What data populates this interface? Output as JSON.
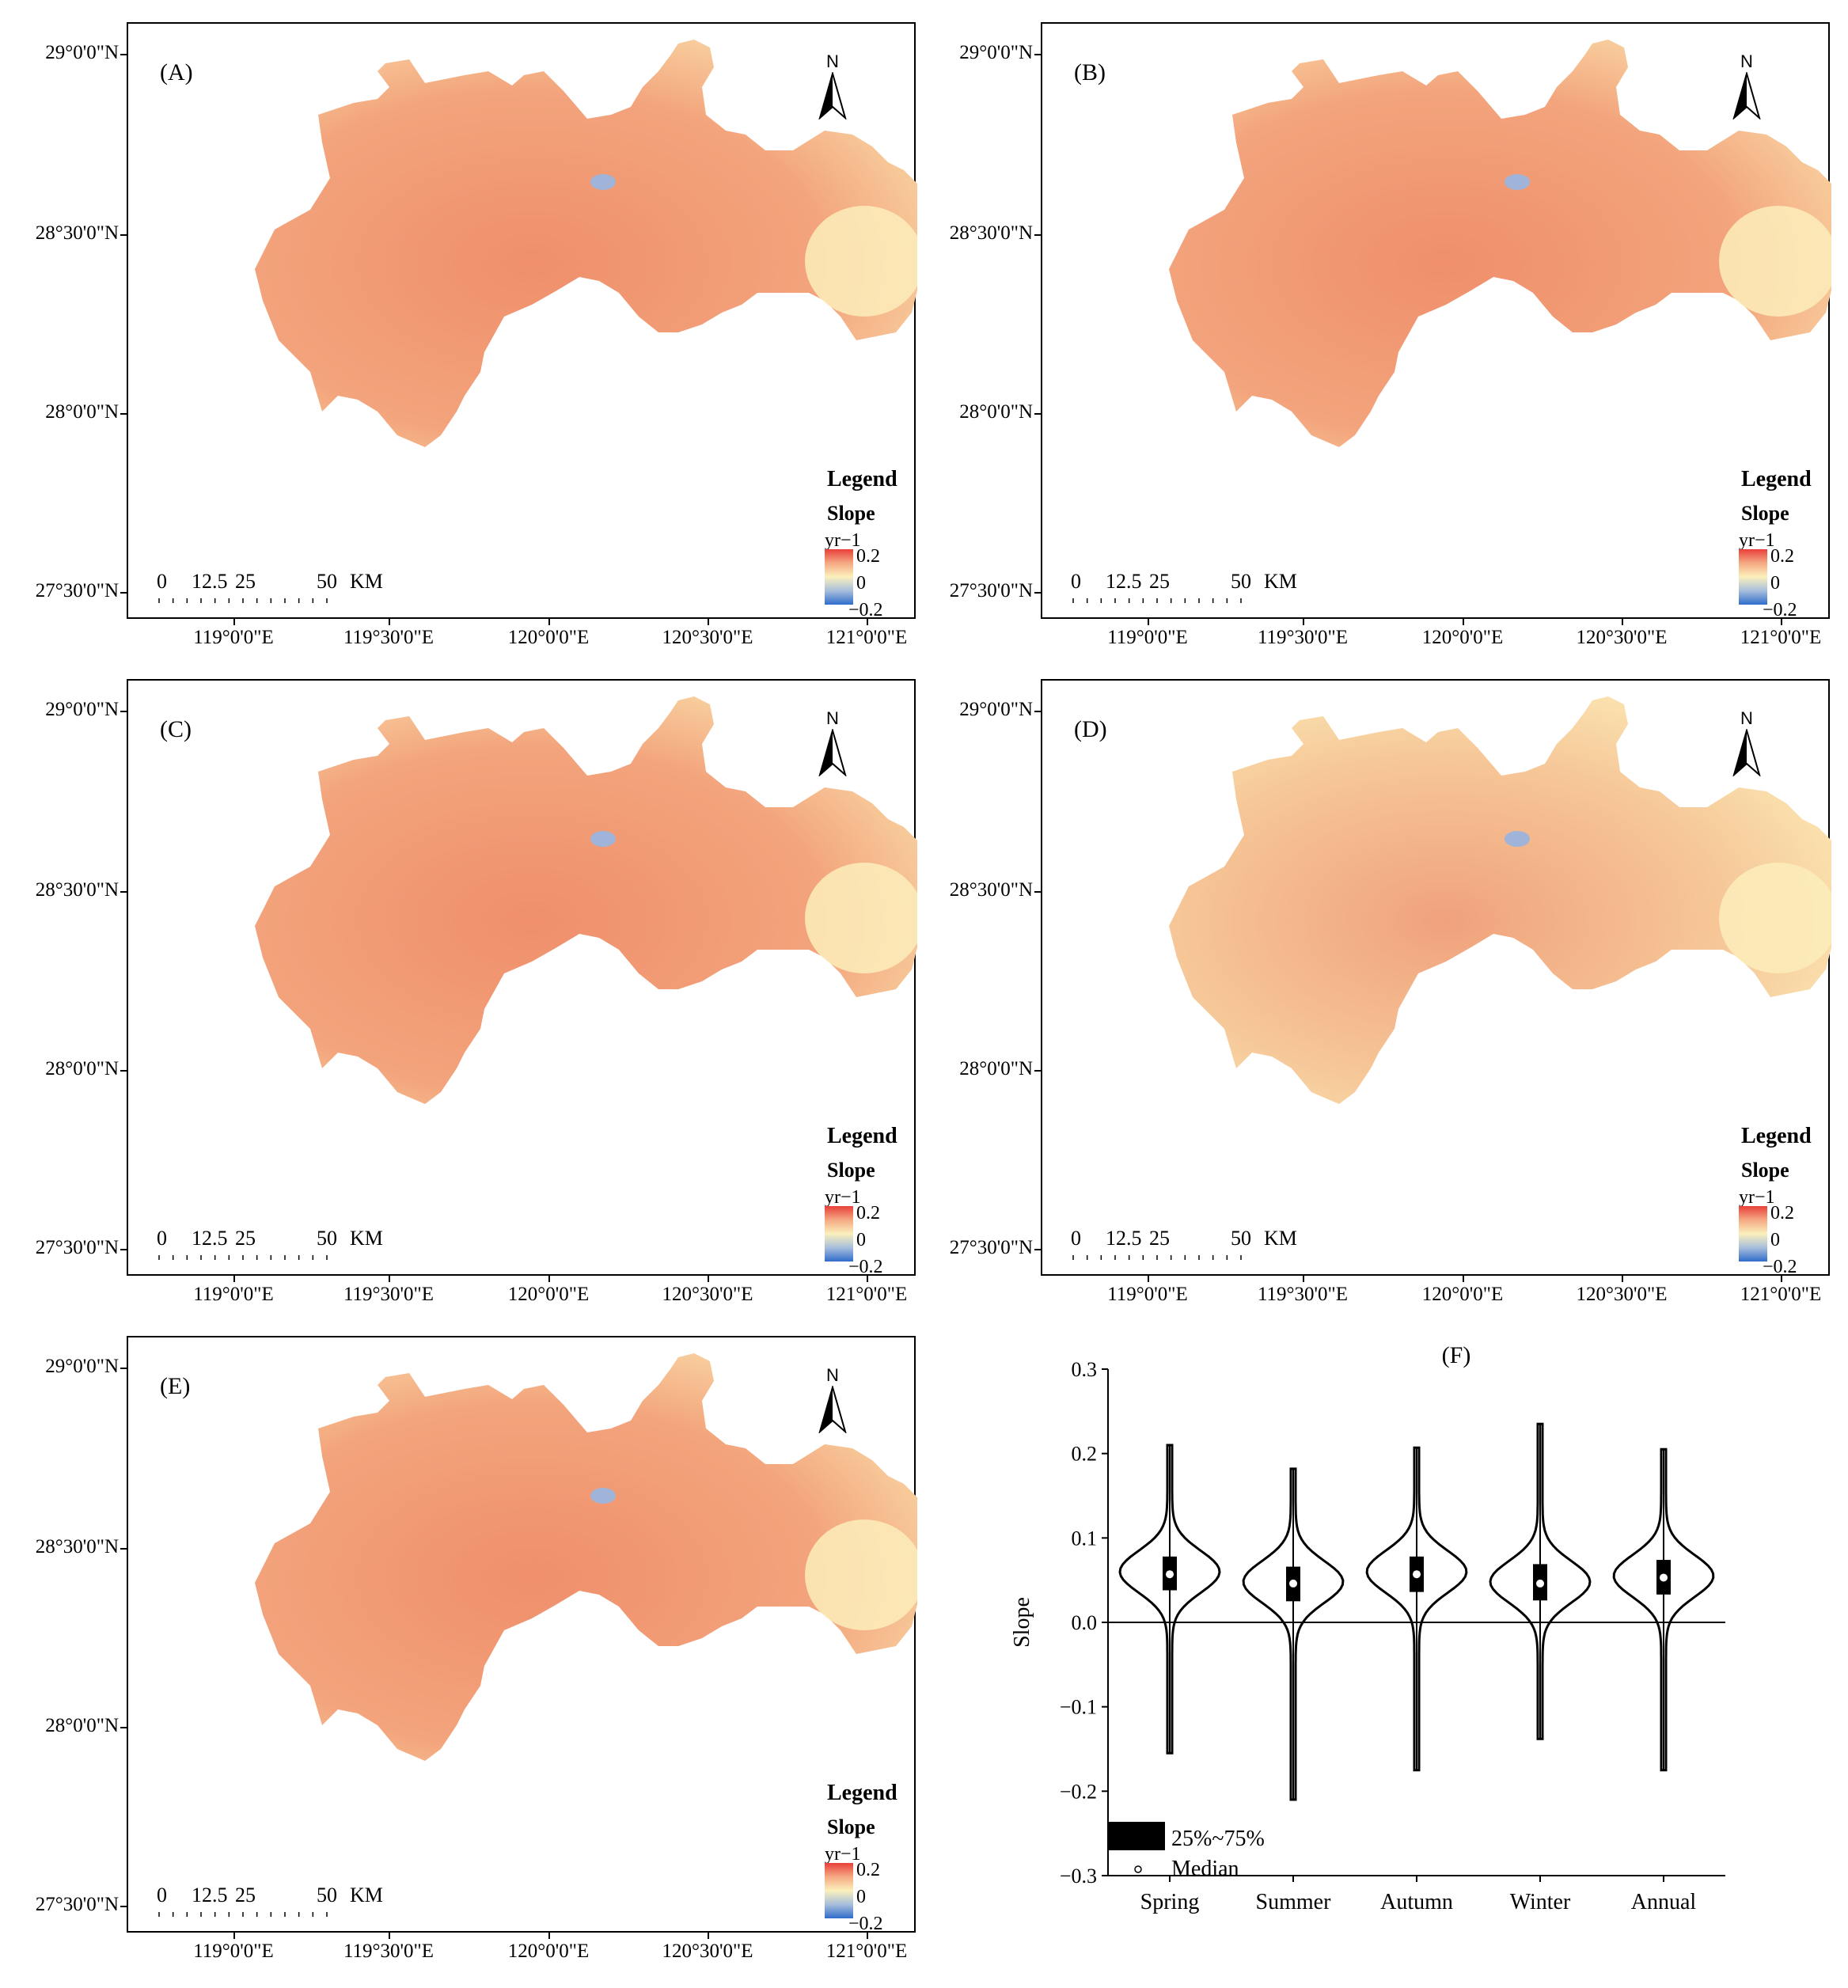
{
  "panels": [
    {
      "id": "A",
      "label": "(A)",
      "north": "N",
      "legend_title": "Legend",
      "legend_subtitle": "Slope",
      "legend_unit": "yr−1",
      "legend_max": "0.2",
      "legend_mid": "0",
      "legend_min": "−0.2",
      "scale_labels": [
        "0",
        "12.5",
        "25",
        "50",
        "KM"
      ],
      "lat_labels": [
        "29°0'0\"N",
        "28°30'0\"N",
        "28°0'0\"N",
        "27°30'0\"N"
      ],
      "lon_labels": [
        "119°0'0\"E",
        "119°30'0\"E",
        "120°0'0\"E",
        "120°30'0\"E",
        "121°0'0\"E"
      ]
    },
    {
      "id": "B",
      "label": "(B)",
      "north": "N",
      "legend_title": "Legend",
      "legend_subtitle": "Slope",
      "legend_unit": "yr−1",
      "legend_max": "0.2",
      "legend_mid": "0",
      "legend_min": "−0.2",
      "scale_labels": [
        "0",
        "12.5",
        "25",
        "50",
        "KM"
      ],
      "lat_labels": [
        "29°0'0\"N",
        "28°30'0\"N",
        "28°0'0\"N",
        "27°30'0\"N"
      ],
      "lon_labels": [
        "119°0'0\"E",
        "119°30'0\"E",
        "120°0'0\"E",
        "120°30'0\"E",
        "121°0'0\"E"
      ]
    },
    {
      "id": "C",
      "label": "(C)",
      "north": "N",
      "legend_title": "Legend",
      "legend_subtitle": "Slope",
      "legend_unit": "yr−1",
      "legend_max": "0.2",
      "legend_mid": "0",
      "legend_min": "−0.2",
      "scale_labels": [
        "0",
        "12.5",
        "25",
        "50",
        "KM"
      ],
      "lat_labels": [
        "29°0'0\"N",
        "28°30'0\"N",
        "28°0'0\"N",
        "27°30'0\"N"
      ],
      "lon_labels": [
        "119°0'0\"E",
        "119°30'0\"E",
        "120°0'0\"E",
        "120°30'0\"E",
        "121°0'0\"E"
      ]
    },
    {
      "id": "D",
      "label": "(D)",
      "north": "N",
      "legend_title": "Legend",
      "legend_subtitle": "Slope",
      "legend_unit": "yr−1",
      "legend_max": "0.2",
      "legend_mid": "0",
      "legend_min": "−0.2",
      "scale_labels": [
        "0",
        "12.5",
        "25",
        "50",
        "KM"
      ],
      "lat_labels": [
        "29°0'0\"N",
        "28°30'0\"N",
        "28°0'0\"N",
        "27°30'0\"N"
      ],
      "lon_labels": [
        "119°0'0\"E",
        "119°30'0\"E",
        "120°0'0\"E",
        "120°30'0\"E",
        "121°0'0\"E"
      ]
    },
    {
      "id": "E",
      "label": "(E)",
      "north": "N",
      "legend_title": "Legend",
      "legend_subtitle": "Slope",
      "legend_unit": "yr−1",
      "legend_max": "0.2",
      "legend_mid": "0",
      "legend_min": "−0.2",
      "scale_labels": [
        "0",
        "12.5",
        "25",
        "50",
        "KM"
      ],
      "lat_labels": [
        "29°0'0\"N",
        "28°30'0\"N",
        "28°0'0\"N",
        "27°30'0\"N"
      ],
      "lon_labels": [
        "119°0'0\"E",
        "119°30'0\"E",
        "120°0'0\"E",
        "120°30'0\"E",
        "121°0'0\"E"
      ]
    }
  ],
  "map_colors": {
    "high": "#e8403a",
    "mid": "#fbf0bd",
    "low": "#2f6ccb",
    "fill": "#f3a47c"
  },
  "chart_data": {
    "type": "violin",
    "title": "(F)",
    "ylabel": "Slope",
    "categories": [
      "Spring",
      "Summer",
      "Autumn",
      "Winter",
      "Annual"
    ],
    "ylim": [
      -0.3,
      0.3
    ],
    "yticks": [
      "0.3",
      "0.2",
      "0.1",
      "0.0",
      "−0.1",
      "−0.2",
      "−0.3"
    ],
    "ytick_values": [
      0.3,
      0.2,
      0.1,
      0.0,
      -0.1,
      -0.2,
      -0.3
    ],
    "series": [
      {
        "category": "Spring",
        "min": -0.155,
        "max": 0.21,
        "q1": 0.038,
        "q3": 0.078,
        "median": 0.057,
        "mode": 0.06
      },
      {
        "category": "Summer",
        "min": -0.21,
        "max": 0.182,
        "q1": 0.025,
        "q3": 0.066,
        "median": 0.046,
        "mode": 0.048
      },
      {
        "category": "Autumn",
        "min": -0.175,
        "max": 0.207,
        "q1": 0.036,
        "q3": 0.078,
        "median": 0.057,
        "mode": 0.06
      },
      {
        "category": "Winter",
        "min": -0.138,
        "max": 0.235,
        "q1": 0.026,
        "q3": 0.069,
        "median": 0.046,
        "mode": 0.048
      },
      {
        "category": "Annual",
        "min": -0.175,
        "max": 0.205,
        "q1": 0.033,
        "q3": 0.074,
        "median": 0.053,
        "mode": 0.055
      }
    ],
    "legend": [
      {
        "label": "25%~75%"
      },
      {
        "label": "Median"
      }
    ]
  }
}
